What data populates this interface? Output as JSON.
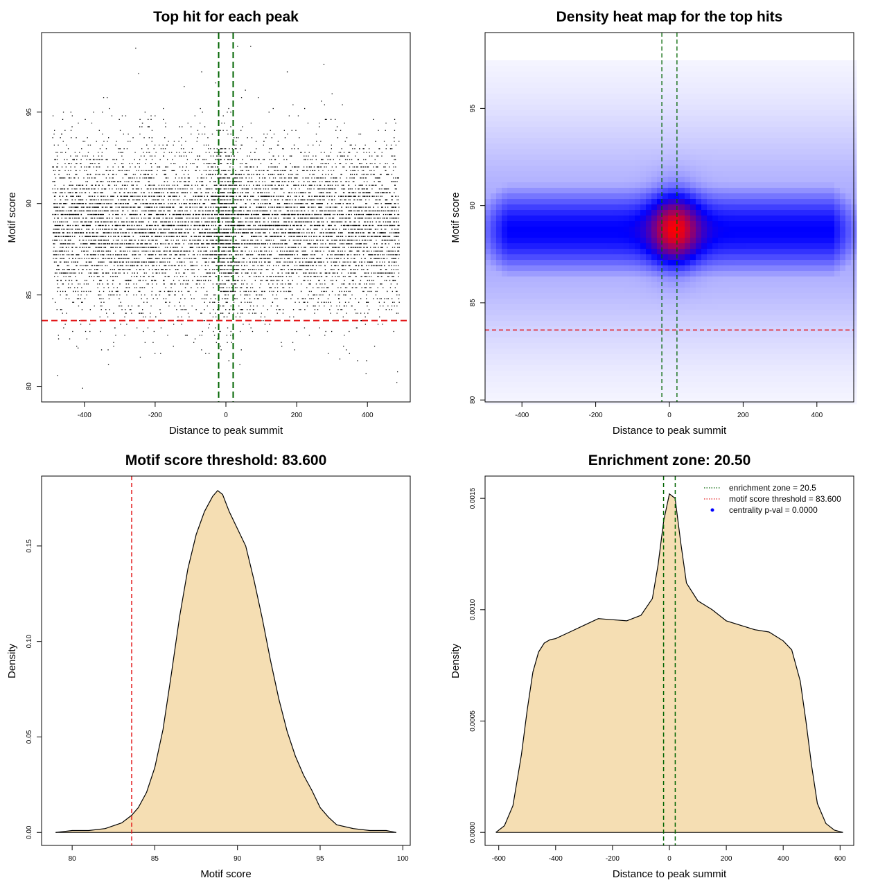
{
  "chart_data": [
    {
      "id": "scatter",
      "type": "scatter",
      "title": "Top hit for each peak",
      "xlabel": "Distance to peak summit",
      "ylabel": "Motif score",
      "xlim": [
        -521,
        521
      ],
      "ylim": [
        79.15,
        99.35
      ],
      "xticks": [
        -400,
        -200,
        0,
        200,
        400
      ],
      "yticks": [
        80,
        85,
        90,
        95
      ],
      "grid": false,
      "n_points": 9000,
      "x_distribution": {
        "min": -490,
        "max": 490,
        "central_fraction": 0.06,
        "central_sd": 25
      },
      "y_distribution": {
        "mean": 88.7,
        "sd": 2.25
      },
      "notable_points": [
        {
          "x": -255,
          "y": 98.5
        },
        {
          "x": 70,
          "y": 98.6
        },
        {
          "x": 33,
          "y": 98.6
        },
        {
          "x": 277,
          "y": 97.6
        },
        {
          "x": -247,
          "y": 97.1
        },
        {
          "x": -405,
          "y": 79.9
        },
        {
          "x": 483,
          "y": 80.2
        },
        {
          "x": 396,
          "y": 80.7
        },
        {
          "x": 322,
          "y": 81.5
        },
        {
          "x": -418,
          "y": 82.1
        },
        {
          "x": -242,
          "y": 81.6
        }
      ],
      "vlines": [
        {
          "x": -20.5,
          "color": "#006400"
        },
        {
          "x": 20.5,
          "color": "#006400"
        }
      ],
      "hlines": [
        {
          "y": 83.6,
          "color": "#e31a1c"
        }
      ]
    },
    {
      "id": "heatmap",
      "type": "heatmap",
      "title": "Density heat map for the top hits",
      "xlabel": "Distance to peak summit",
      "ylabel": "Motif score",
      "xlim": [
        -500,
        500
      ],
      "ylim": [
        79.9,
        98.9
      ],
      "xticks": [
        -400,
        -200,
        0,
        200,
        400
      ],
      "yticks": [
        80,
        85,
        90,
        95
      ],
      "grid": false,
      "colors": {
        "low": "#ffffff",
        "mid": "#0000ff",
        "high": "#ff0000"
      },
      "density_model": {
        "band": {
          "y_center": 88.7,
          "y_sd": 1.6,
          "x_range": [
            -500,
            500
          ]
        },
        "peak": {
          "x_center": 15,
          "y_center": 88.8,
          "x_sd": 45,
          "y_sd": 1.3
        }
      },
      "vlines": [
        {
          "x": -20.5,
          "color": "#006400"
        },
        {
          "x": 20.5,
          "color": "#006400"
        }
      ],
      "hlines": [
        {
          "y": 83.6,
          "color": "#e31a1c"
        }
      ]
    },
    {
      "id": "score_density",
      "type": "area",
      "title": "Motif score threshold: 83.600",
      "xlabel": "Motif score",
      "ylabel": "Density",
      "xlim": [
        78.15,
        100.45
      ],
      "ylim": [
        -0.0068,
        0.1866
      ],
      "xticks": [
        80,
        85,
        90,
        95,
        100
      ],
      "yticks": [
        0.0,
        0.05,
        0.1,
        0.15
      ],
      "ytick_labels": [
        "0.00",
        "0.05",
        "0.10",
        "0.15"
      ],
      "fill": "#f5deb3",
      "grid": false,
      "x": [
        79.0,
        80.0,
        81.0,
        82.0,
        83.0,
        83.6,
        84.0,
        84.5,
        85.0,
        85.5,
        86.0,
        86.5,
        87.0,
        87.5,
        88.0,
        88.5,
        88.8,
        89.1,
        89.5,
        90.0,
        90.5,
        91.0,
        91.5,
        92.0,
        92.5,
        93.0,
        93.5,
        94.0,
        94.5,
        95.0,
        95.5,
        96.0,
        97.0,
        98.0,
        99.0,
        99.6
      ],
      "y": [
        0.0,
        0.001,
        0.001,
        0.002,
        0.005,
        0.009,
        0.013,
        0.021,
        0.034,
        0.054,
        0.083,
        0.113,
        0.138,
        0.156,
        0.168,
        0.176,
        0.179,
        0.177,
        0.168,
        0.159,
        0.15,
        0.132,
        0.112,
        0.09,
        0.07,
        0.053,
        0.04,
        0.03,
        0.022,
        0.013,
        0.008,
        0.004,
        0.002,
        0.001,
        0.001,
        0.0
      ],
      "vlines": [
        {
          "x": 83.6,
          "color": "#e31a1c"
        }
      ]
    },
    {
      "id": "distance_density",
      "type": "area",
      "title": "Enrichment zone: 20.50",
      "xlabel": "Distance to peak summit",
      "ylabel": "Density",
      "xlim": [
        -648,
        648
      ],
      "ylim": [
        -5.85e-05,
        0.0016
      ],
      "xticks": [
        -600,
        -400,
        -200,
        0,
        200,
        400,
        600
      ],
      "yticks": [
        0.0,
        0.0005,
        0.001,
        0.0015
      ],
      "ytick_labels": [
        "0.0000",
        "0.0005",
        "0.0010",
        "0.0015"
      ],
      "fill": "#f5deb3",
      "grid": false,
      "x": [
        -610,
        -580,
        -550,
        -520,
        -500,
        -480,
        -460,
        -440,
        -420,
        -400,
        -350,
        -300,
        -250,
        -200,
        -150,
        -100,
        -60,
        -40,
        -20,
        0,
        20,
        40,
        60,
        100,
        150,
        200,
        250,
        300,
        350,
        400,
        430,
        460,
        480,
        500,
        520,
        550,
        580,
        610
      ],
      "y": [
        0.0,
        3e-05,
        0.00012,
        0.00035,
        0.00055,
        0.00072,
        0.00081,
        0.00085,
        0.000865,
        0.00087,
        0.0009,
        0.00093,
        0.00096,
        0.000955,
        0.00095,
        0.000975,
        0.00105,
        0.0012,
        0.0014,
        0.00152,
        0.0015,
        0.0013,
        0.00112,
        0.00104,
        0.001,
        0.00095,
        0.00093,
        0.00091,
        0.0009,
        0.00086,
        0.00082,
        0.00068,
        0.0005,
        0.0003,
        0.00013,
        4e-05,
        1e-05,
        0.0
      ],
      "vlines": [
        {
          "x": -20.5,
          "color": "#006400"
        },
        {
          "x": 20.5,
          "color": "#006400"
        }
      ],
      "legend": {
        "position": "top-right",
        "entries": [
          {
            "label": "enrichment zone = 20.5",
            "color": "#006400",
            "style": "dotted-line"
          },
          {
            "label": "motif score threshold = 83.600",
            "color": "#e31a1c",
            "style": "dotted-line"
          },
          {
            "label": "centrality p-val = 0.0000",
            "color": "#0000ff",
            "style": "point"
          }
        ]
      }
    }
  ]
}
